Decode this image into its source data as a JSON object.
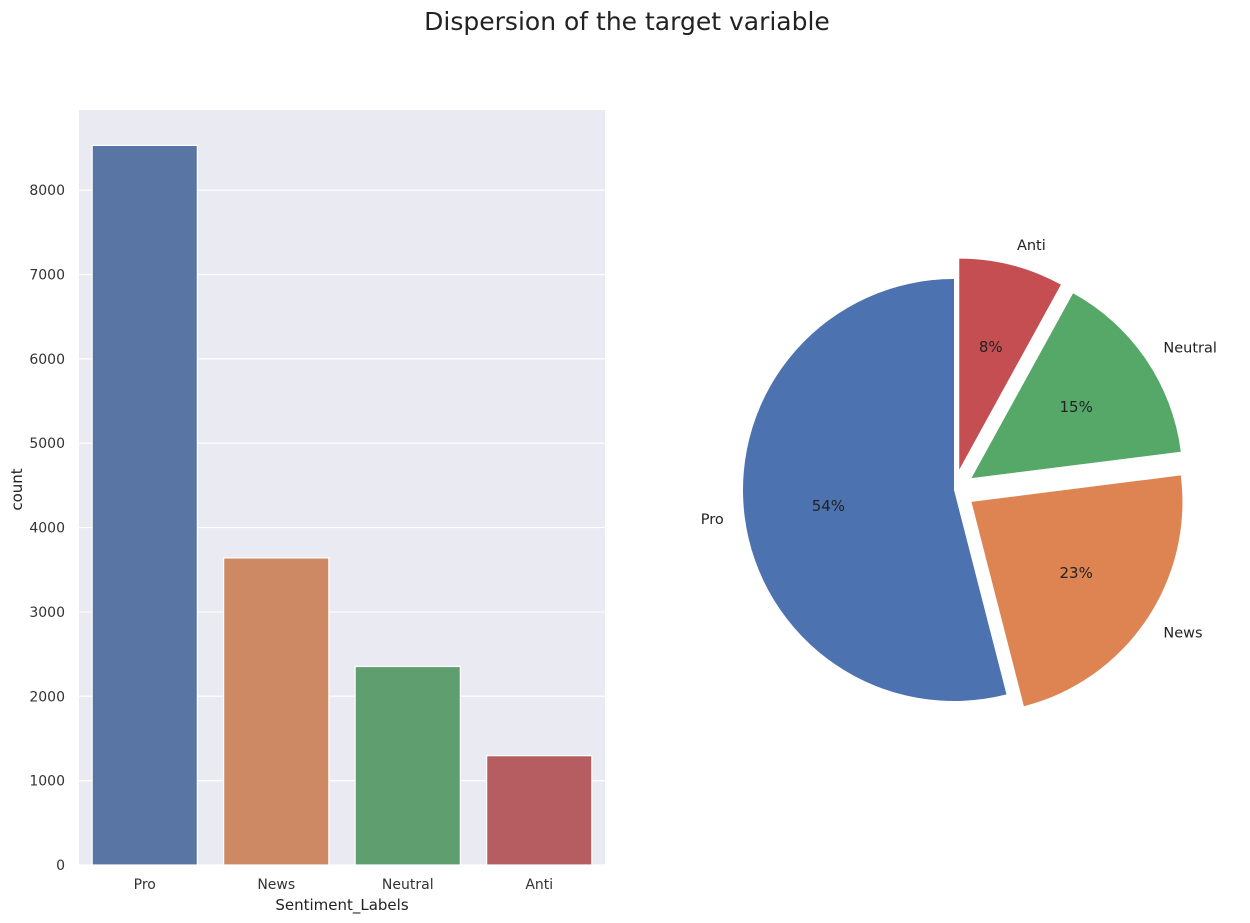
{
  "figure": {
    "suptitle": "Dispersion of the target variable"
  },
  "chart_data": [
    {
      "type": "bar",
      "title": "",
      "xlabel": "Sentiment_Labels",
      "ylabel": "count",
      "categories": [
        "Pro",
        "News",
        "Neutral",
        "Anti"
      ],
      "values": [
        8530,
        3640,
        2353,
        1296
      ],
      "ylim": [
        0,
        8950
      ],
      "yticks": [
        0,
        1000,
        2000,
        3000,
        4000,
        5000,
        6000,
        7000,
        8000
      ],
      "colors": [
        "#5875a4",
        "#cc8963",
        "#5f9e6e",
        "#b55d60"
      ],
      "background": "#eaeaf2",
      "grid": true
    },
    {
      "type": "pie",
      "labels": [
        "Pro",
        "News",
        "Neutral",
        "Anti"
      ],
      "values": [
        54,
        23,
        15,
        8
      ],
      "pct_labels": [
        "54%",
        "23%",
        "15%",
        "8%"
      ],
      "explode": [
        0,
        0.1,
        0.1,
        0.1
      ],
      "colors": [
        "#4c72b0",
        "#dd8452",
        "#55a868",
        "#c44e52"
      ],
      "startangle": 90,
      "direction": "counterclockwise"
    }
  ]
}
